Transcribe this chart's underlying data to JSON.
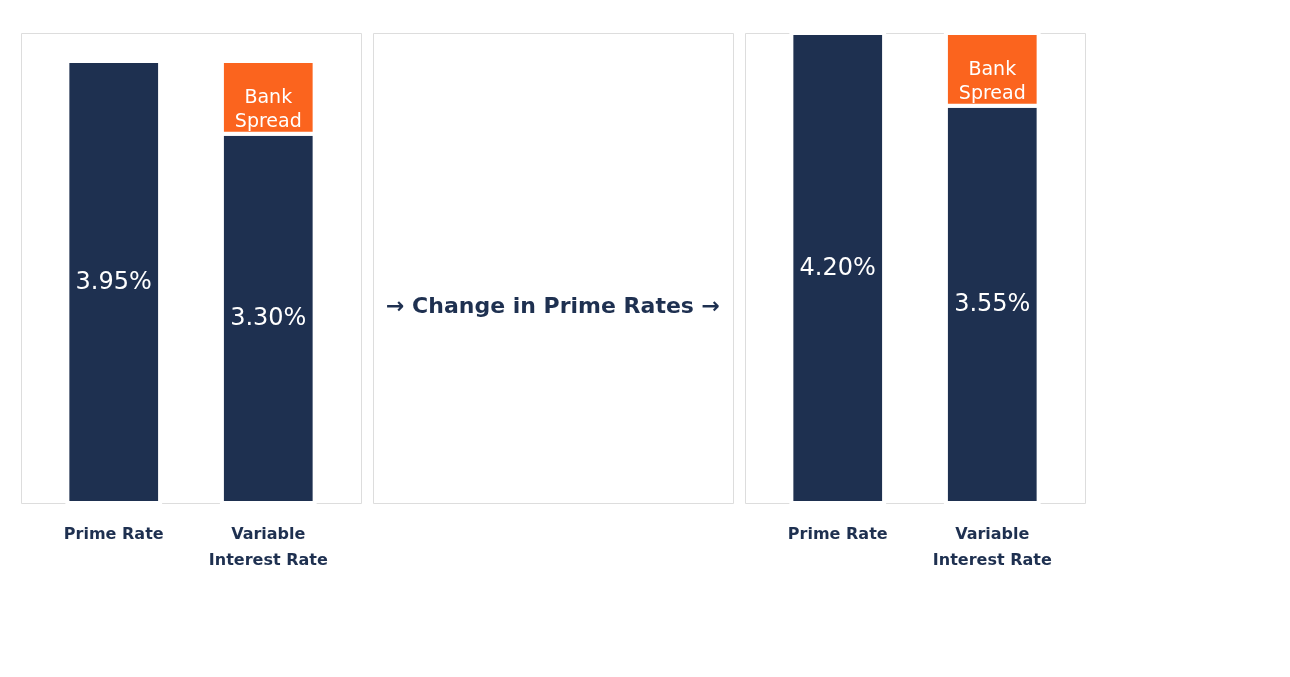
{
  "chart_data": [
    {
      "type": "bar",
      "stacked": true,
      "categories": [
        "Prime Rate",
        "Variable Interest Rate"
      ],
      "tick_labels": "x",
      "legend": false,
      "annotations": [
        "→ Change in Prime Rates →"
      ],
      "series": [
        {
          "color": "#1e3050",
          "values": [
            3.95,
            3.3
          ],
          "value_labels": [
            "3.95%",
            "3.30%"
          ]
        },
        {
          "name": "Bank Spread",
          "color": "#fb641e",
          "values": [
            null,
            0.65
          ]
        }
      ]
    },
    {
      "type": "bar",
      "stacked": true,
      "categories": [
        "Prime Rate",
        "Variable Interest Rate"
      ],
      "tick_labels": "x",
      "legend": false,
      "series": [
        {
          "color": "#1e3050",
          "values": [
            4.2,
            3.55
          ],
          "value_labels": [
            "4.20%",
            "3.55%"
          ]
        },
        {
          "name": "Bank Spread",
          "color": "#fb641e",
          "values": [
            null,
            0.65
          ]
        }
      ]
    }
  ]
}
